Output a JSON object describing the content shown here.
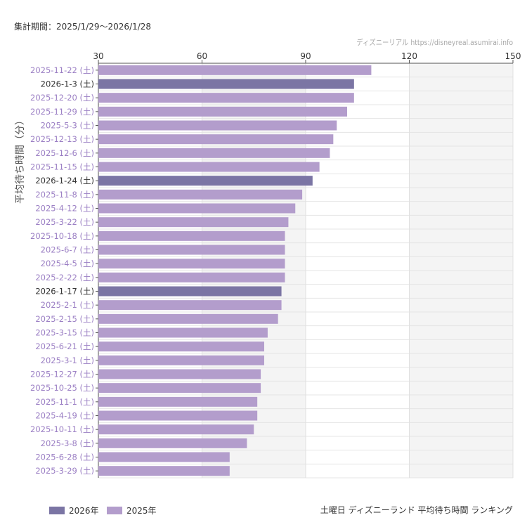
{
  "period": "集計期間：2025/1/29〜2026/1/28",
  "credit": "ディズニーリアル https://disneyreal.asumirai.info",
  "caption": "土曜日 ディズニーランド 平均待ち時間 ランキング",
  "colors": {
    "2026": "#7b75a4",
    "2025": "#b39dcc",
    "label2026": "#333333",
    "label2025": "#9b7fc4"
  },
  "chart_data": {
    "type": "bar",
    "orientation": "horizontal",
    "ylabel": "平均待ち時間（分）",
    "xlim": [
      30,
      150
    ],
    "xticks": [
      30,
      60,
      90,
      120,
      150
    ],
    "grid": true,
    "legend_position": "bottom-left",
    "legend": [
      {
        "name": "2026年",
        "key": "2026"
      },
      {
        "name": "2025年",
        "key": "2025"
      }
    ],
    "categories": [
      "2025-11-22 (土)",
      "2026-1-3 (土)",
      "2025-12-20 (土)",
      "2025-11-29 (土)",
      "2025-5-3 (土)",
      "2025-12-13 (土)",
      "2025-12-6 (土)",
      "2025-11-15 (土)",
      "2026-1-24 (土)",
      "2025-11-8 (土)",
      "2025-4-12 (土)",
      "2025-3-22 (土)",
      "2025-10-18 (土)",
      "2025-6-7 (土)",
      "2025-4-5 (土)",
      "2025-2-22 (土)",
      "2026-1-17 (土)",
      "2025-2-1 (土)",
      "2025-2-15 (土)",
      "2025-3-15 (土)",
      "2025-6-21 (土)",
      "2025-3-1 (土)",
      "2025-12-27 (土)",
      "2025-10-25 (土)",
      "2025-11-1 (土)",
      "2025-4-19 (土)",
      "2025-10-11 (土)",
      "2025-3-8 (土)",
      "2025-6-28 (土)",
      "2025-3-29 (土)"
    ],
    "values": [
      109,
      104,
      104,
      102,
      99,
      98,
      97,
      94,
      92,
      89,
      87,
      85,
      84,
      84,
      84,
      84,
      83,
      83,
      82,
      79,
      78,
      78,
      77,
      77,
      76,
      76,
      75,
      73,
      68,
      68
    ]
  }
}
